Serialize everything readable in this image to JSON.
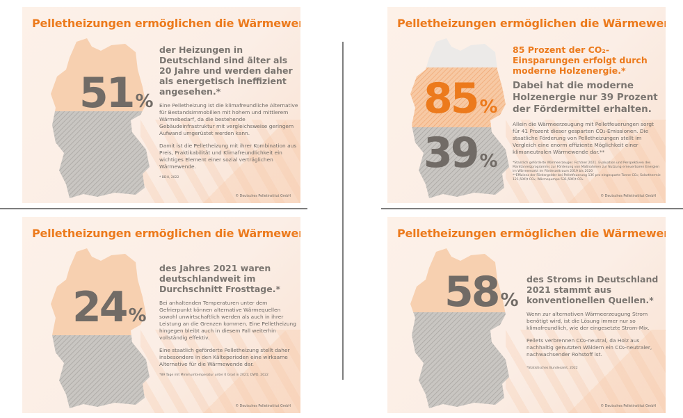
{
  "title": "Pelletheizungen ermöglichen die Wärmewende!",
  "copyright": "© Deutsches Pelletinstitut GmbH",
  "colors": {
    "orange": "#ec7a1c",
    "gray": "#716b66",
    "peach": "#f6c8a5",
    "hatch_gray": "#bdbab6"
  },
  "cards": [
    {
      "value": "51",
      "unit": "%",
      "headline": "der Heizungen in Deutschland sind älter als 20 Jahre und werden daher als energetisch ineffizient angesehen.*",
      "paragraphs": [
        "Eine Pelletheizung ist die klimafreundliche Alternative für Bestandsimmobilien mit hohem und mittlerem Wärmebedarf, da die bestehende Gebäudeinfrastruktur mit vergleichsweise geringem Aufwand umgerüstet werden kann.",
        "Damit ist die Pelletheizung mit ihrer Kombination aus Preis, Praktikabilität und Klimafreundlichkeit ein wichtiges Element einer sozial verträglichen Wärmewende."
      ],
      "note": "* BDH, 2022"
    },
    {
      "value": "85",
      "unit": "%",
      "value2": "39",
      "unit2": "%",
      "headline": "85 Prozent der CO₂-Einsparungen erfolgt durch moderne Holzenergie.*",
      "headline2": "Dabei hat die moderne Holzenergie nur 39 Prozent der Fördermittel erhalten.",
      "paragraphs": [
        "Allein die Wärmeerzeugung mit Pelletfeuerungen sorgt für 41 Prozent dieser gesparten CO₂-Emissionen. Die staatliche Förderung von Pelletheizungen stellt im Vergleich eine enorm effiziente Möglichkeit einer klimaneutralen Wärmewende dar.**"
      ],
      "note": "*Staatlich geförderte Wärmeerzeuger. Fichtner 2021. Evaluation und Perspektiven des Marktanreizprogramms zur Förderung von Maßnahmen zur Nutzung erneuerbaren Energien im Wärmemarkt im Förderzeitraum 2019 bis 2020",
      "note2": "**Effizienz der Fördergelder bei Pelletfeuerung 13€ pro eingesparte Tonne CO₂; Solarthermie 121,50€/t CO₂; Wärmepumpe 531,50€/t CO₂"
    },
    {
      "value": "24",
      "unit": "%",
      "headline": "des Jahres 2021 waren deutschlandweit im Durchschnitt Frosttage.*",
      "paragraphs": [
        "Bei anhaltenden Temperaturen unter dem Gefrierpunkt können alternative Wärmequellen sowohl unwirtschaftlich werden als auch in ihrer Leistung an die Grenzen kommen. Eine Pelletheizung hingegen bleibt auch in diesem Fall weiterhin vollständig effektiv.",
        "Eine staatlich geförderte Pelletheizung stellt daher insbesondere in den Kälteperioden eine wirksame Alternative für die Wärmewende dar."
      ],
      "note": "*89 Tage mit Minimumtemperatur unter 0 Grad in 2021; DWD, 2022"
    },
    {
      "value": "58",
      "unit": "%",
      "headline": "des Stroms in Deutschland 2021 stammt aus konventionellen Quellen.*",
      "paragraphs": [
        "Wenn zur alternativen Wärmeerzeugung Strom benötigt wird, ist die Lösung immer nur so klimafreundlich, wie der eingesetzte Strom-Mix.",
        "Pellets verbrennen CO₂-neutral, da Holz aus nachhaltig genutzten Wäldern ein CO₂-neutraler, nachwachsender Rohstoff ist."
      ],
      "note": "*Statistisches Bundesamt, 2022"
    }
  ]
}
